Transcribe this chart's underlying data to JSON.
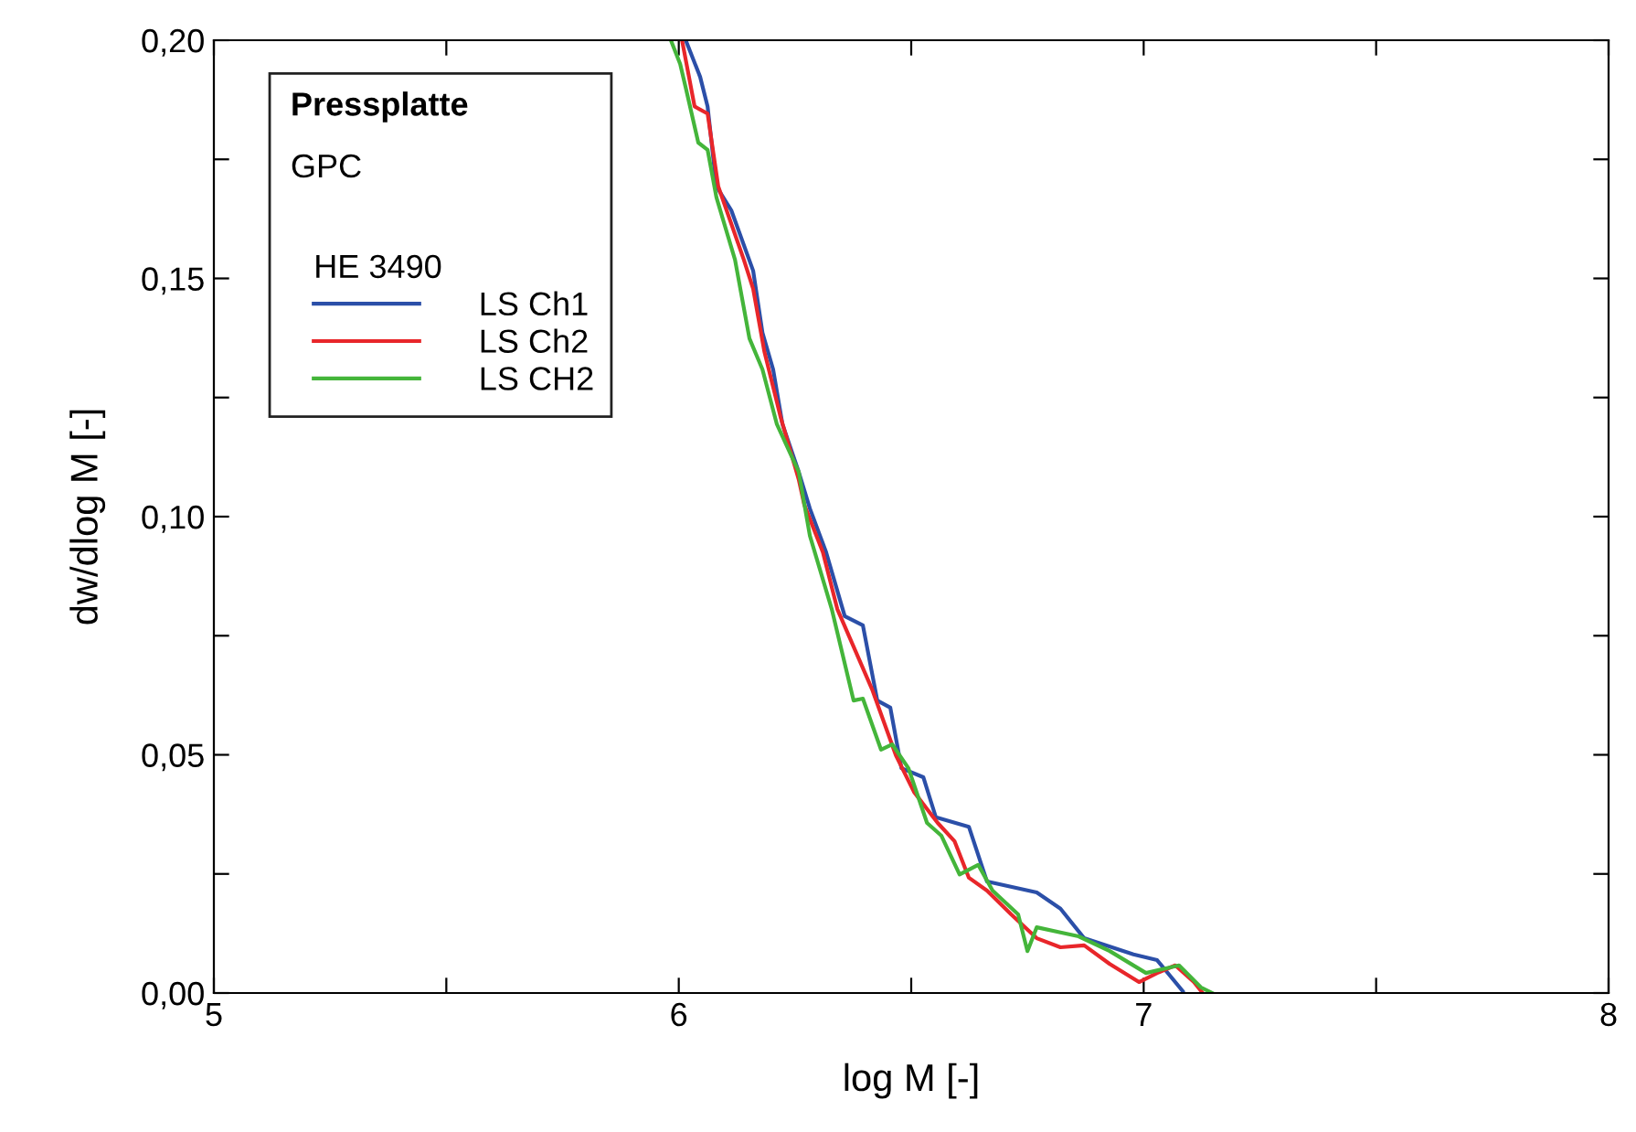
{
  "chart_data": {
    "type": "line",
    "xlabel": "log M [-]",
    "ylabel": "dw/dlog M [-]",
    "legend_title": "HE 3490",
    "annotations": [
      "Pressplatte",
      "GPC"
    ],
    "xlim": [
      5,
      8
    ],
    "ylim": [
      0,
      0.2
    ],
    "xticks": [
      5,
      {
        "value": 5.5,
        "label": null
      },
      6,
      {
        "value": 6.5,
        "label": null
      },
      7,
      {
        "value": 7.5,
        "label": null
      },
      8
    ],
    "yticks": [
      {
        "value": 0,
        "label": "0,00"
      },
      {
        "value": 0.025,
        "label": null
      },
      {
        "value": 0.05,
        "label": "0,05"
      },
      {
        "value": 0.075,
        "label": null
      },
      {
        "value": 0.1,
        "label": "0,10"
      },
      {
        "value": 0.125,
        "label": null
      },
      {
        "value": 0.15,
        "label": "0,15"
      },
      {
        "value": 0.175,
        "label": null
      },
      {
        "value": 0.2,
        "label": "0,20"
      }
    ],
    "grid": false,
    "legend": "top left",
    "marker": "none",
    "line_style": "solid",
    "series": [
      {
        "name": "LS Ch1",
        "color": "#2b4fa8",
        "x": [
          6.015,
          6.046,
          6.062,
          6.081,
          6.113,
          6.16,
          6.18,
          6.203,
          6.223,
          6.258,
          6.282,
          6.317,
          6.357,
          6.396,
          6.427,
          6.455,
          6.479,
          6.526,
          6.553,
          6.624,
          6.663,
          6.77,
          6.821,
          6.872,
          6.978,
          7.029,
          7.084
        ],
        "values": [
          0.2,
          0.1923,
          0.1861,
          0.1693,
          0.1643,
          0.1516,
          0.1386,
          0.1309,
          0.1194,
          0.1094,
          0.1017,
          0.0925,
          0.0791,
          0.0772,
          0.0614,
          0.0599,
          0.0472,
          0.0453,
          0.0369,
          0.0349,
          0.0234,
          0.0211,
          0.0177,
          0.0115,
          0.0081,
          0.0069,
          0.0004
        ]
      },
      {
        "name": "LS Ch2",
        "color": "#e8262a",
        "x": [
          6.007,
          6.034,
          6.062,
          6.085,
          6.14,
          6.16,
          6.184,
          6.219,
          6.258,
          6.27,
          6.31,
          6.341,
          6.416,
          6.467,
          6.506,
          6.557,
          6.593,
          6.624,
          6.663,
          6.715,
          6.77,
          6.821,
          6.872,
          6.927,
          6.99,
          7.029,
          7.068,
          7.108,
          7.127
        ],
        "values": [
          0.2,
          0.1861,
          0.1846,
          0.1693,
          0.1539,
          0.1478,
          0.1347,
          0.1209,
          0.1078,
          0.1025,
          0.0925,
          0.0806,
          0.0637,
          0.0499,
          0.0422,
          0.0357,
          0.0319,
          0.0242,
          0.0215,
          0.0165,
          0.0115,
          0.0096,
          0.01,
          0.0061,
          0.0023,
          0.0042,
          0.0058,
          0.0023,
          0
        ]
      },
      {
        "name": "LS CH2",
        "color": "#44b53a",
        "x": [
          5.983,
          6.003,
          6.015,
          6.042,
          6.062,
          6.081,
          6.121,
          6.152,
          6.18,
          6.211,
          6.258,
          6.282,
          6.329,
          6.376,
          6.396,
          6.435,
          6.459,
          6.494,
          6.534,
          6.565,
          6.604,
          6.644,
          6.675,
          6.73,
          6.75,
          6.77,
          6.821,
          6.86,
          6.927,
          7.005,
          7.076,
          7.123,
          7.147
        ],
        "values": [
          0.2,
          0.195,
          0.19,
          0.1785,
          0.177,
          0.167,
          0.1539,
          0.1374,
          0.1309,
          0.1194,
          0.1094,
          0.096,
          0.0806,
          0.0614,
          0.0618,
          0.0511,
          0.0522,
          0.0472,
          0.0357,
          0.033,
          0.0249,
          0.0269,
          0.0215,
          0.0165,
          0.0088,
          0.0138,
          0.0127,
          0.0119,
          0.0088,
          0.0042,
          0.0058,
          0.0012,
          0
        ]
      }
    ]
  }
}
